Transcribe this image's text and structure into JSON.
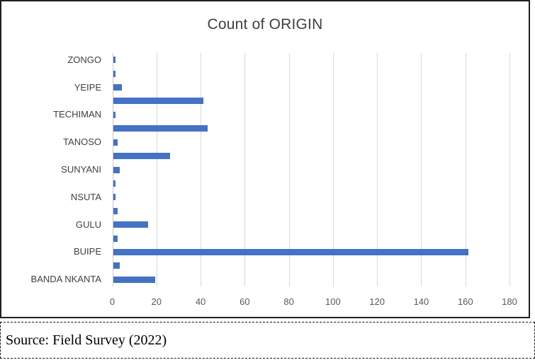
{
  "chart": {
    "source_note": "Source: Field Survey (2022)"
  },
  "chart_data": {
    "type": "bar",
    "orientation": "horizontal",
    "title": "Count of ORIGIN",
    "categories": [
      "ZONGO",
      "",
      "YEIPE",
      "",
      "TECHIMAN",
      "",
      "TANOSO",
      "",
      "SUNYANI",
      "",
      "NSUTA",
      "",
      "GULU",
      "",
      "BUIPE",
      "",
      "BANDA NKANTA"
    ],
    "values": [
      1,
      1,
      4,
      41,
      1,
      43,
      2,
      26,
      3,
      1,
      1,
      2,
      16,
      2,
      161,
      3,
      19
    ],
    "xlabel": "",
    "ylabel": "",
    "xlim": [
      0,
      180
    ],
    "x_ticks": [
      0,
      20,
      40,
      60,
      80,
      100,
      120,
      140,
      160,
      180
    ],
    "grid": true,
    "legend": false,
    "bar_color": "#4472C4",
    "gridline_color": "#D9D9D9",
    "axis_color": "#C6C6C6",
    "title_color": "#404040",
    "category_label_color": "#404040",
    "tick_label_color": "#595959"
  }
}
